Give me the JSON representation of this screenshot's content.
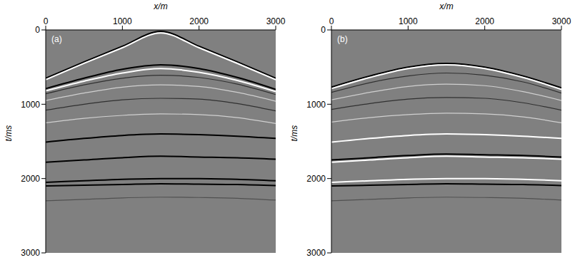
{
  "chart_data": [
    {
      "type": "line",
      "title": "(a)",
      "x_label": "x/m",
      "y_label": "t/ms",
      "x": [
        0,
        500,
        1000,
        1500,
        2000,
        2500,
        3000
      ],
      "xlim": [
        0,
        3000
      ],
      "xticks": [
        0,
        1000,
        2000,
        3000
      ],
      "ylim": [
        0,
        3000
      ],
      "yticks": [
        0,
        1000,
        2000,
        3000
      ],
      "grid": false,
      "series": [
        {
          "color": "#000000",
          "values": [
            650,
            430,
            220,
            20,
            220,
            430,
            650
          ]
        },
        {
          "color": "#ffffff",
          "values": [
            670,
            450,
            240,
            40,
            240,
            450,
            670
          ]
        },
        {
          "color": "#000000",
          "values": [
            790,
            650,
            530,
            470,
            520,
            640,
            800
          ]
        },
        {
          "color": "#ffffff",
          "values": [
            820,
            690,
            580,
            520,
            570,
            680,
            830
          ]
        },
        {
          "color": "#303030",
          "values": [
            860,
            740,
            650,
            610,
            640,
            730,
            870
          ]
        },
        {
          "color": "#d0d0d0",
          "values": [
            950,
            850,
            770,
            740,
            760,
            840,
            960
          ]
        },
        {
          "color": "#303030",
          "values": [
            1080,
            1000,
            940,
            920,
            930,
            990,
            1090
          ]
        },
        {
          "color": "#d0d0d0",
          "values": [
            1250,
            1190,
            1150,
            1130,
            1140,
            1180,
            1260
          ]
        },
        {
          "color": "#000000",
          "values": [
            1510,
            1460,
            1420,
            1400,
            1410,
            1430,
            1460
          ]
        },
        {
          "color": "#000000",
          "values": [
            1780,
            1750,
            1720,
            1700,
            1710,
            1720,
            1740
          ]
        },
        {
          "color": "#000000",
          "values": [
            2050,
            2030,
            2010,
            2000,
            2000,
            2010,
            2030
          ]
        },
        {
          "color": "#000000",
          "values": [
            2100,
            2090,
            2080,
            2070,
            2075,
            2080,
            2095
          ]
        },
        {
          "color": "#505050",
          "values": [
            2300,
            2280,
            2260,
            2250,
            2255,
            2265,
            2290
          ]
        }
      ]
    },
    {
      "type": "line",
      "title": "(b)",
      "x_label": "x/m",
      "y_label": "t/ms",
      "x": [
        0,
        500,
        1000,
        1500,
        2000,
        2500,
        3000
      ],
      "xlim": [
        0,
        3000
      ],
      "xticks": [
        0,
        1000,
        2000,
        3000
      ],
      "ylim": [
        0,
        3000
      ],
      "yticks": [
        0,
        1000,
        2000,
        3000
      ],
      "grid": false,
      "series": [
        {
          "color": "#000000",
          "values": [
            770,
            620,
            500,
            450,
            500,
            620,
            780
          ]
        },
        {
          "color": "#ffffff",
          "values": [
            790,
            640,
            520,
            470,
            520,
            640,
            800
          ]
        },
        {
          "color": "#303030",
          "values": [
            840,
            710,
            620,
            580,
            610,
            700,
            850
          ]
        },
        {
          "color": "#d0d0d0",
          "values": [
            940,
            840,
            760,
            730,
            750,
            830,
            950
          ]
        },
        {
          "color": "#303030",
          "values": [
            1070,
            990,
            930,
            910,
            920,
            980,
            1080
          ]
        },
        {
          "color": "#d0d0d0",
          "values": [
            1240,
            1180,
            1140,
            1120,
            1130,
            1170,
            1250
          ]
        },
        {
          "color": "#ffffff",
          "values": [
            1510,
            1460,
            1420,
            1400,
            1410,
            1430,
            1460
          ]
        },
        {
          "color": "#ffffff",
          "values": [
            1780,
            1750,
            1720,
            1700,
            1710,
            1720,
            1740
          ]
        },
        {
          "color": "#000000",
          "values": [
            1750,
            1720,
            1690,
            1670,
            1680,
            1690,
            1710
          ]
        },
        {
          "color": "#ffffff",
          "values": [
            2050,
            2030,
            2010,
            2000,
            2000,
            2010,
            2030
          ]
        },
        {
          "color": "#000000",
          "values": [
            2100,
            2090,
            2080,
            2070,
            2075,
            2080,
            2095
          ]
        },
        {
          "color": "#505050",
          "values": [
            2300,
            2280,
            2260,
            2250,
            2255,
            2265,
            2290
          ]
        }
      ]
    }
  ]
}
